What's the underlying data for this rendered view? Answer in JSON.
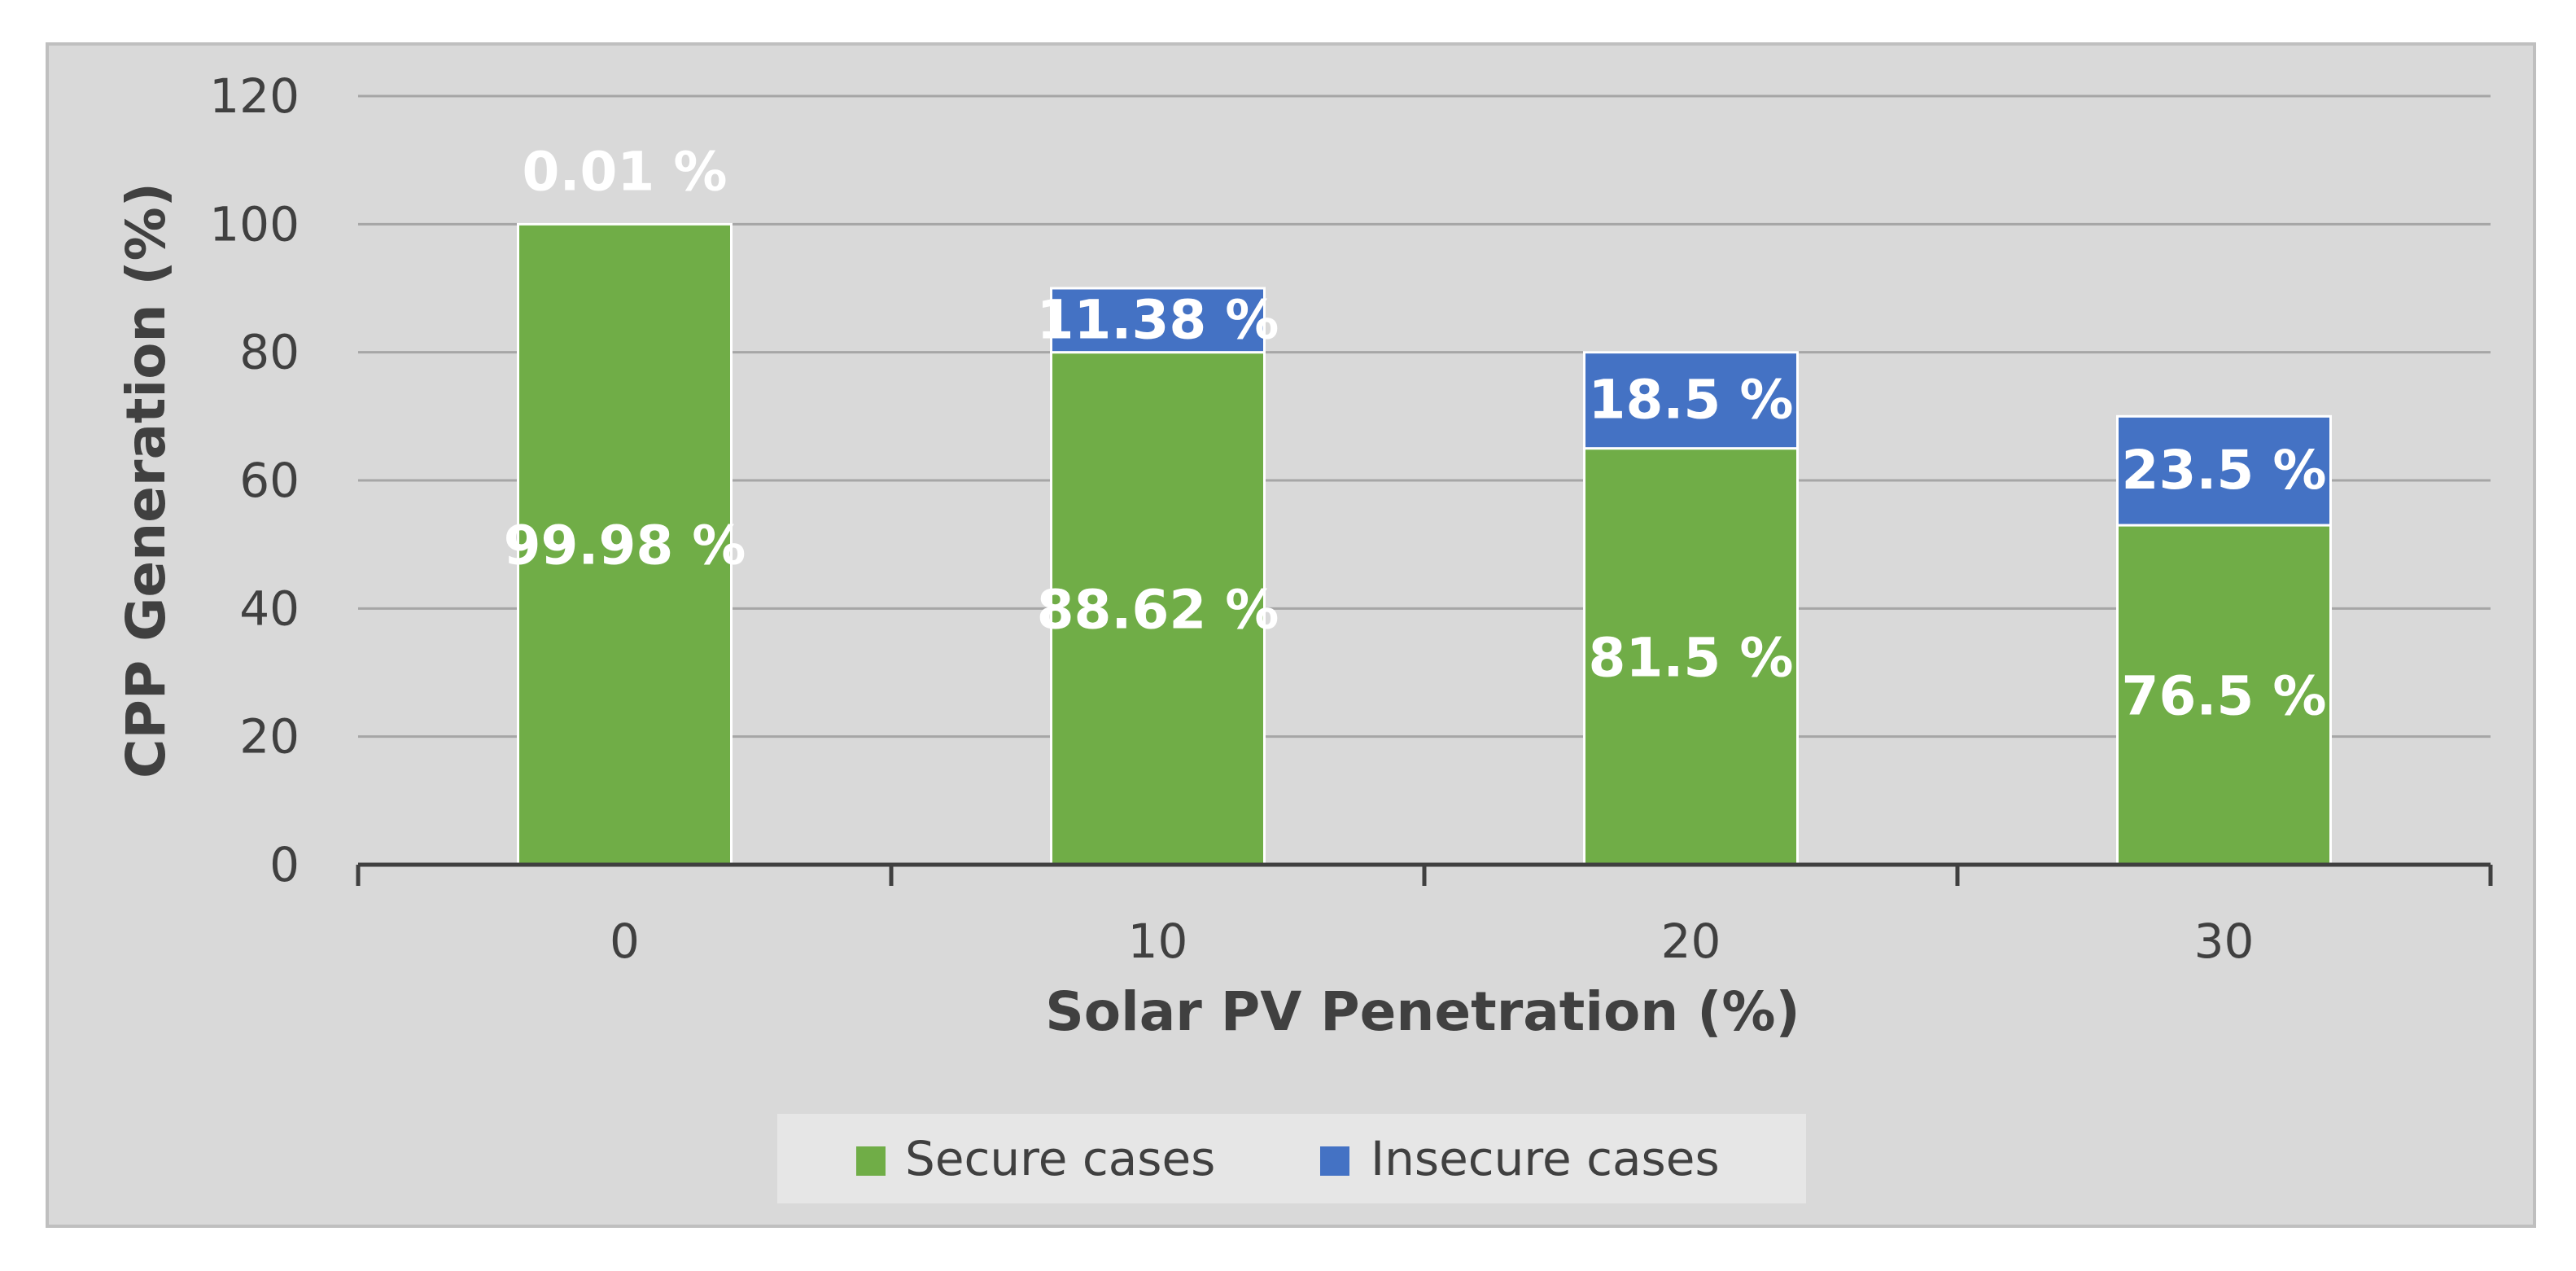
{
  "chart_data": {
    "type": "bar",
    "stacked": true,
    "categories": [
      "0",
      "10",
      "20",
      "30"
    ],
    "series": [
      {
        "name": "Secure cases",
        "color": "#70ad47",
        "values": [
          100,
          80,
          65,
          53
        ],
        "labels": [
          "99.98 %",
          "88.62 %",
          "81.5 %",
          "76.5 %"
        ]
      },
      {
        "name": "Insecure cases",
        "color": "#4472c4",
        "values": [
          0,
          10,
          15,
          17
        ],
        "labels": [
          "0.01 %",
          "11.38 %",
          "18.5 %",
          "23.5 %"
        ]
      }
    ],
    "title": "",
    "xlabel": "Solar PV Penetration (%)",
    "ylabel": "CPP Generation (%)",
    "ylim": [
      0,
      120
    ],
    "yticks": [
      "0",
      "20",
      "40",
      "60",
      "80",
      "100",
      "120"
    ],
    "grid": true,
    "legend": "bottom"
  }
}
